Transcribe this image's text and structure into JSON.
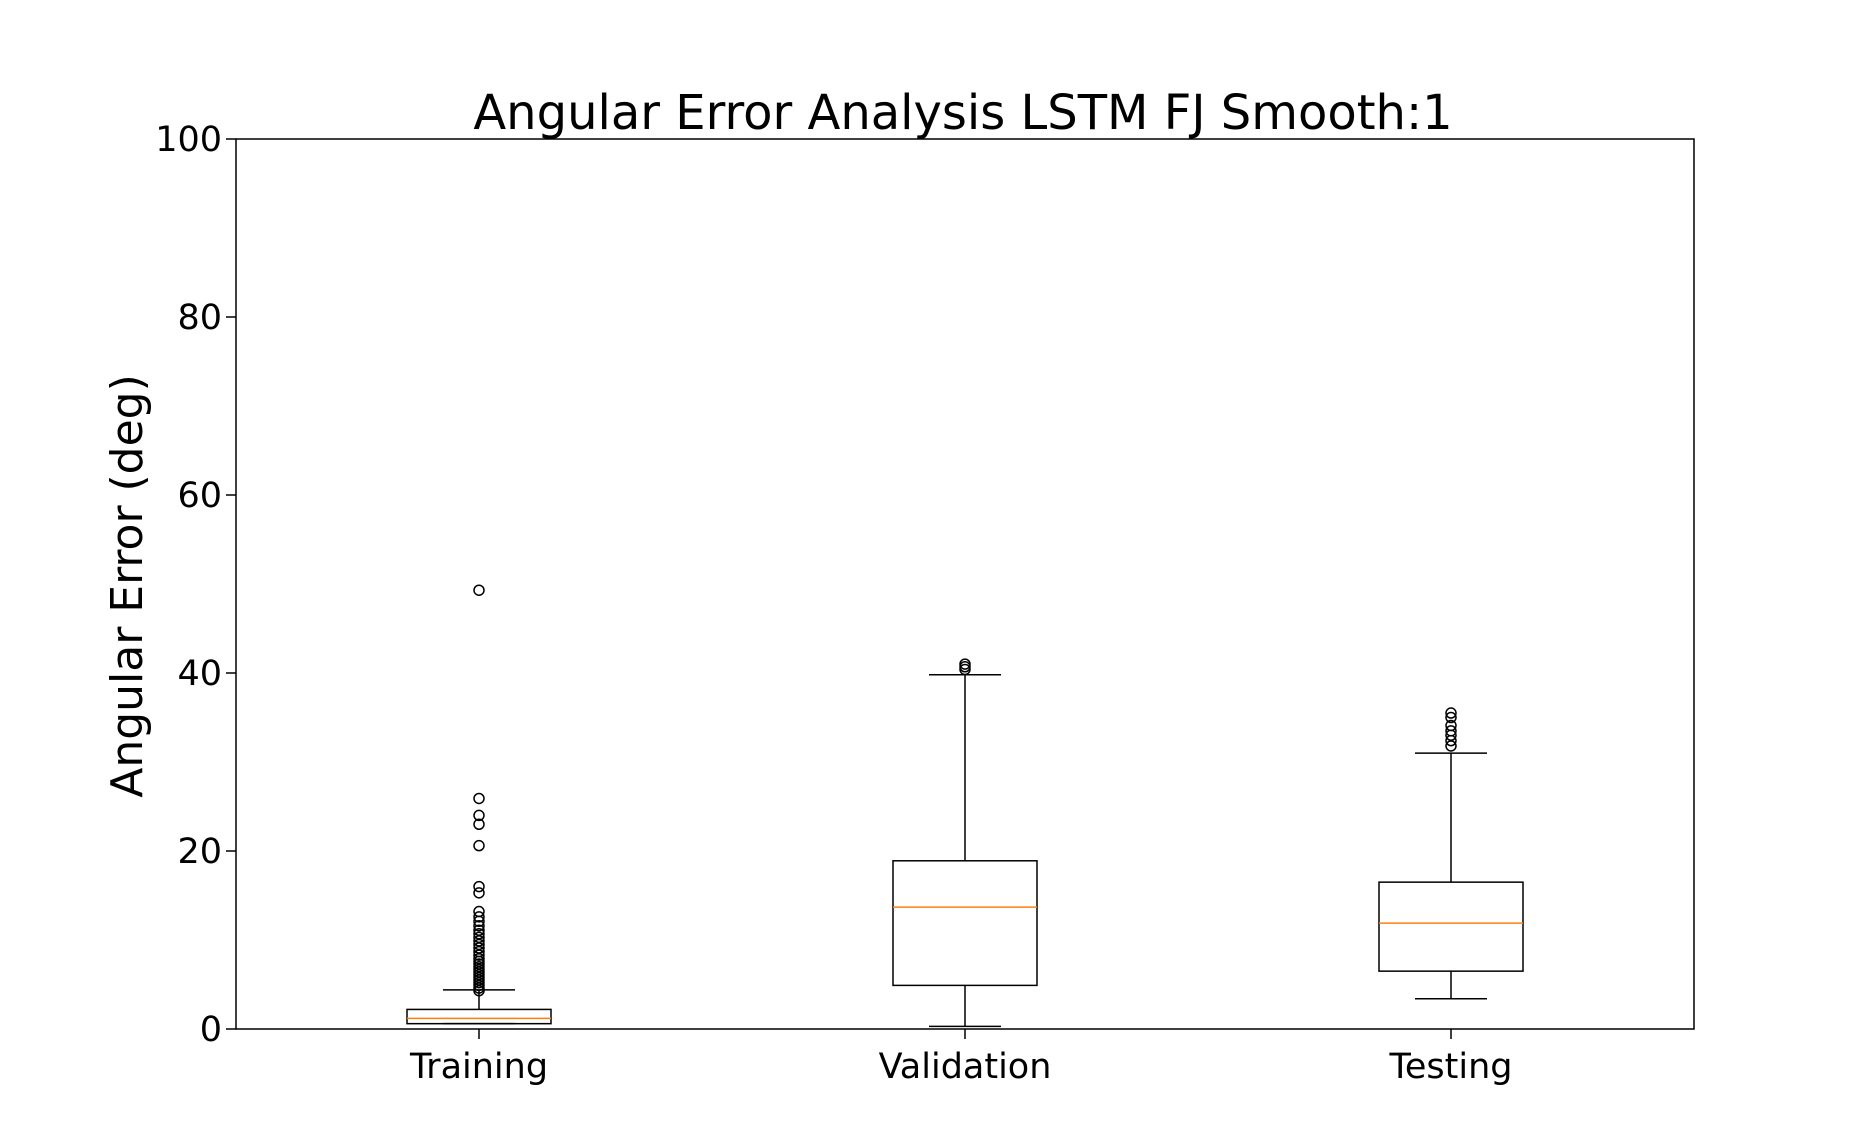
{
  "chart_data": {
    "type": "box",
    "title": "Angular Error Analysis LSTM FJ Smooth:1",
    "xlabel": "",
    "ylabel": "Angular Error (deg)",
    "ylim": [
      0,
      100
    ],
    "yticks": [
      "0",
      "20",
      "40",
      "60",
      "80",
      "100"
    ],
    "categories": [
      "Training",
      "Validation",
      "Testing"
    ],
    "boxes": [
      {
        "label": "Training",
        "whisker_low": 0.6,
        "q1": 0.6,
        "median": 1.2,
        "q3": 2.2,
        "whisker_high": 4.4,
        "outliers": [
          4.3,
          4.6,
          4.9,
          5.2,
          5.5,
          5.8,
          6.1,
          6.4,
          6.7,
          7.0,
          7.3,
          7.6,
          7.9,
          8.3,
          8.7,
          9.1,
          9.5,
          9.9,
          10.3,
          10.7,
          11.1,
          11.6,
          12.1,
          12.6,
          13.2,
          15.3,
          16.0,
          20.6,
          23.0,
          24.0,
          25.9,
          49.3
        ]
      },
      {
        "label": "Validation",
        "whisker_low": 0.3,
        "q1": 4.9,
        "median": 13.7,
        "q3": 18.9,
        "whisker_high": 39.8,
        "outliers": [
          40.4,
          40.7,
          41.0
        ]
      },
      {
        "label": "Testing",
        "whisker_low": 3.4,
        "q1": 6.5,
        "median": 11.9,
        "q3": 16.5,
        "whisker_high": 31.0,
        "outliers": [
          31.8,
          32.4,
          33.0,
          33.5,
          34.1,
          35.0,
          35.5
        ]
      }
    ],
    "colors": {
      "box": "#000000",
      "median": "#ff7f0e",
      "background": "#ffffff"
    },
    "grid": false,
    "legend": "none"
  }
}
